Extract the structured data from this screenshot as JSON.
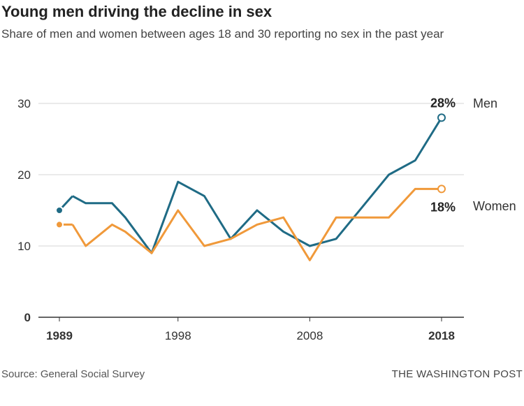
{
  "chart_data": {
    "type": "line",
    "title": "Young men driving the decline in sex",
    "subtitle": "Share of men and women between ages 18 and 30 reporting no sex in the past year",
    "x": [
      1989,
      1990,
      1991,
      1993,
      1994,
      1996,
      1998,
      2000,
      2002,
      2004,
      2006,
      2008,
      2010,
      2012,
      2014,
      2016,
      2018
    ],
    "series": [
      {
        "name": "Men",
        "color": "#1f6b85",
        "values": [
          15,
          17,
          16,
          16,
          14,
          9,
          19,
          17,
          11,
          15,
          12,
          10,
          11,
          15.5,
          20,
          22,
          28
        ],
        "end_label": "28%"
      },
      {
        "name": "Women",
        "color": "#f0993a",
        "values": [
          13,
          13,
          10,
          13,
          12,
          9,
          15,
          10,
          11,
          13,
          14,
          8,
          14,
          14,
          14,
          18,
          18
        ],
        "end_label": "18%"
      }
    ],
    "xlim": [
      1989,
      2018
    ],
    "ylim": [
      0,
      30
    ],
    "yticks": [
      "0",
      "10",
      "20",
      "30"
    ],
    "xticks": [
      {
        "v": 1989,
        "label": "1989",
        "bold": true
      },
      {
        "v": 1998,
        "label": "1998",
        "bold": false
      },
      {
        "v": 2008,
        "label": "2008",
        "bold": false
      },
      {
        "v": 2018,
        "label": "2018",
        "bold": true
      }
    ],
    "grid": true
  },
  "source": "Source: General Social Survey",
  "credit": "THE WASHINGTON POST"
}
